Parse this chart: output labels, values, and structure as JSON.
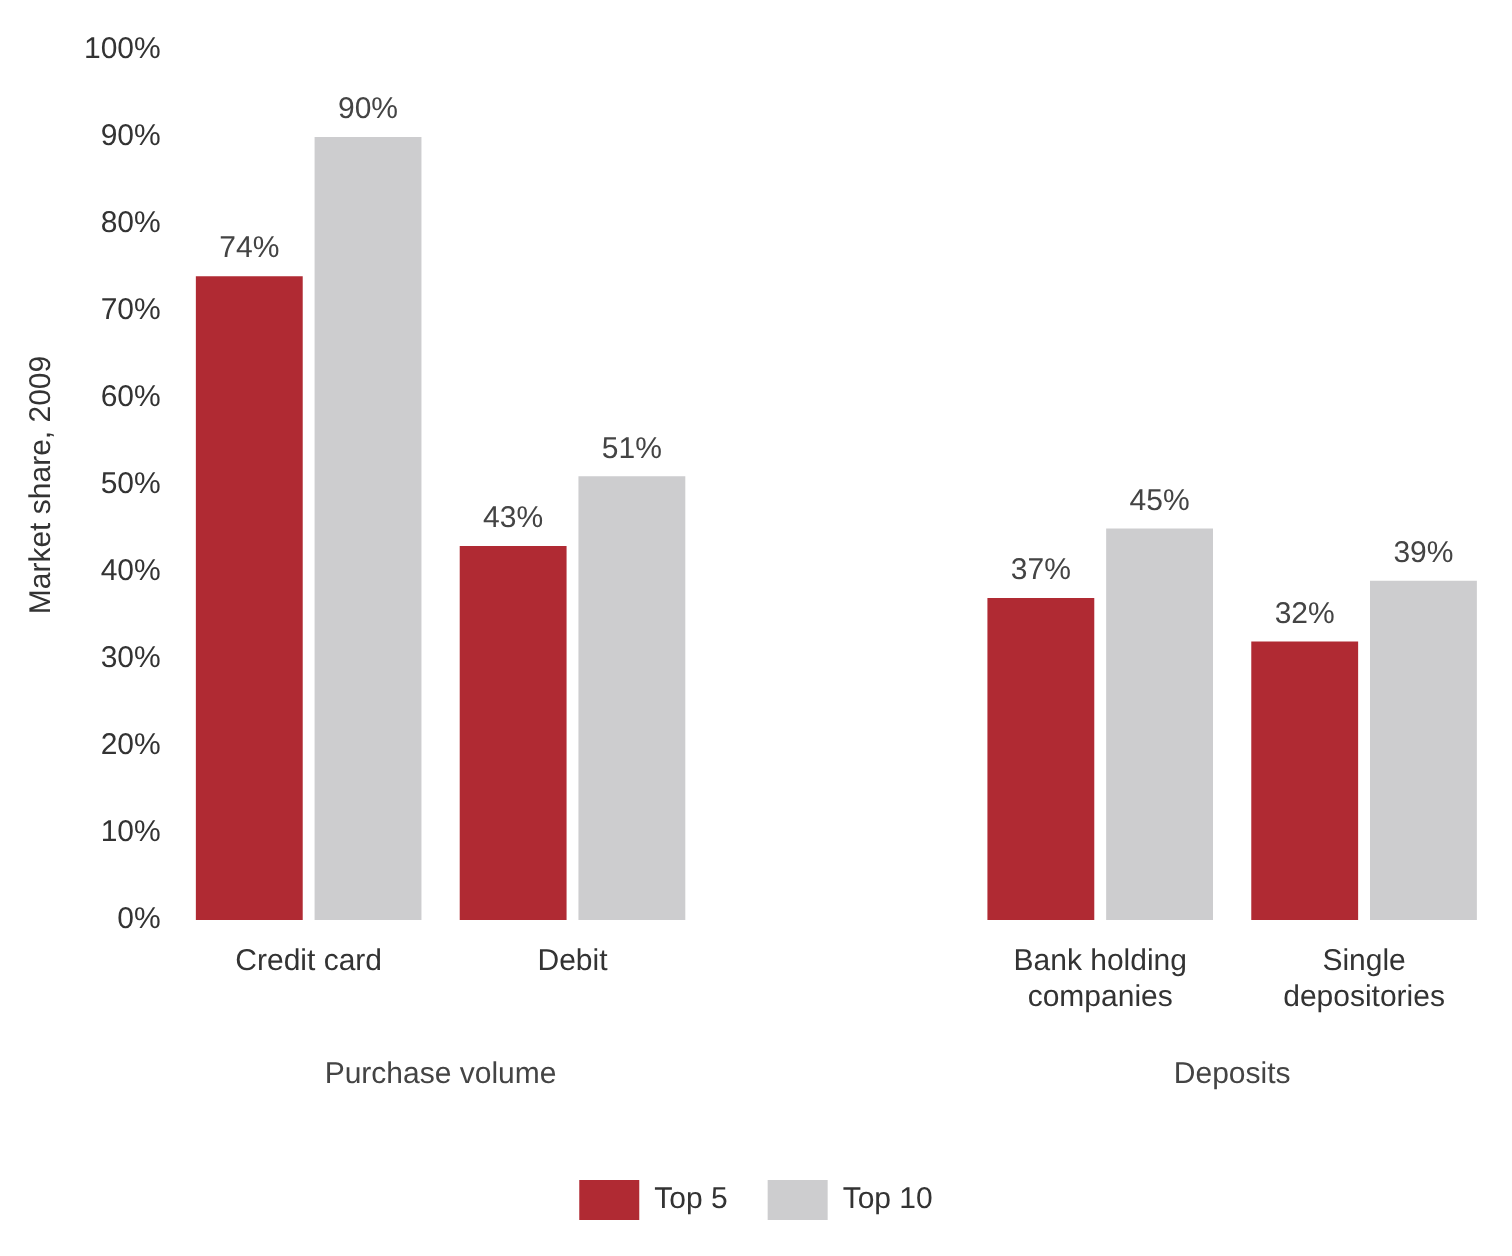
{
  "chart_data": {
    "type": "bar",
    "categories": [
      "Credit card",
      "Debit",
      null,
      "Bank holding companies",
      "Single depositories"
    ],
    "series": [
      {
        "name": "Top 5",
        "color": "#b02a33",
        "values": [
          74,
          43,
          null,
          37,
          32
        ],
        "value_labels": [
          "74%",
          "43%",
          null,
          "37%",
          "32%"
        ]
      },
      {
        "name": "Top 10",
        "color": "#cdcdcf",
        "values": [
          90,
          51,
          null,
          45,
          39
        ],
        "value_labels": [
          "90%",
          "51%",
          null,
          "45%",
          "39%"
        ]
      }
    ],
    "ylabel": "Market share, 2009",
    "ylim": [
      0,
      100
    ],
    "yticks": [
      {
        "value": 0,
        "label": "0%"
      },
      {
        "value": 10,
        "label": "10%"
      },
      {
        "value": 20,
        "label": "20%"
      },
      {
        "value": 30,
        "label": "30%"
      },
      {
        "value": 40,
        "label": "40%"
      },
      {
        "value": 50,
        "label": "50%"
      },
      {
        "value": 60,
        "label": "60%"
      },
      {
        "value": 70,
        "label": "70%"
      },
      {
        "value": 80,
        "label": "80%"
      },
      {
        "value": 90,
        "label": "90%"
      },
      {
        "value": 100,
        "label": "100%"
      }
    ],
    "grid": false,
    "legend": "bottom",
    "annotations": [
      "Purchase volume",
      "Deposits"
    ]
  }
}
